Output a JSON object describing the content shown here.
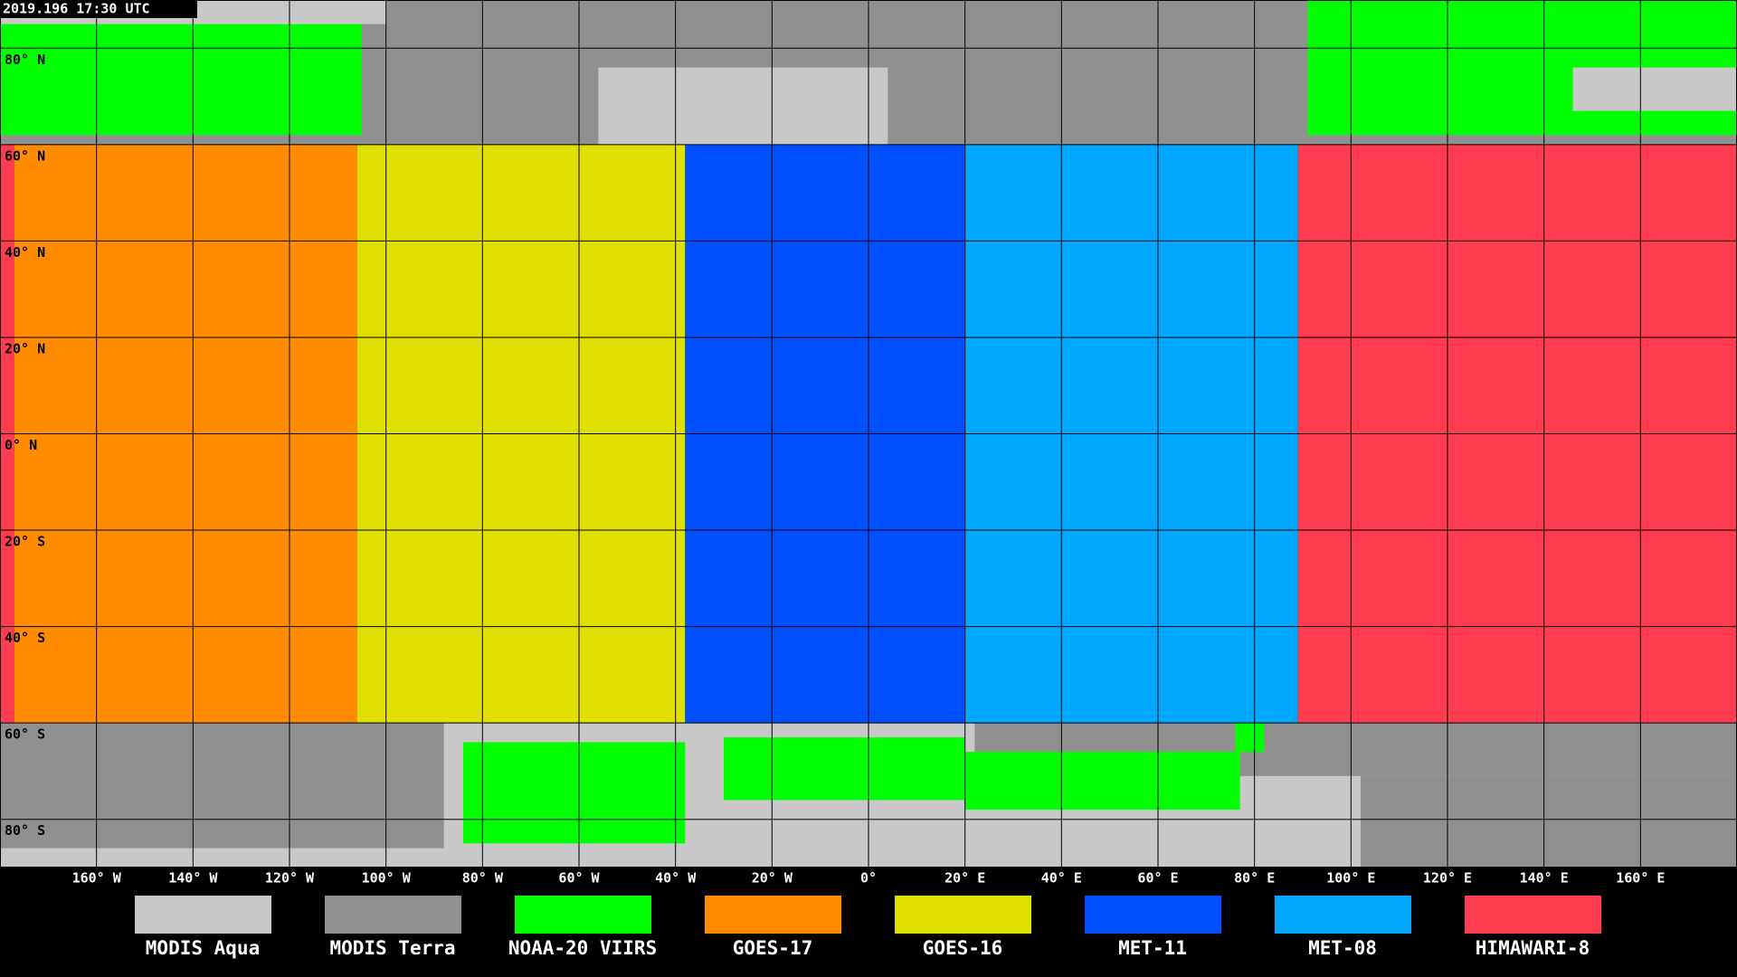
{
  "timestamp": "2019.196 17:30 UTC",
  "latitudes": [
    {
      "value": 80,
      "label": "80° N"
    },
    {
      "value": 60,
      "label": "60° N"
    },
    {
      "value": 40,
      "label": "40° N"
    },
    {
      "value": 20,
      "label": "20° N"
    },
    {
      "value": 0,
      "label": "0° N"
    },
    {
      "value": -20,
      "label": "20° S"
    },
    {
      "value": -40,
      "label": "40° S"
    },
    {
      "value": -60,
      "label": "60° S"
    },
    {
      "value": -80,
      "label": "80° S"
    }
  ],
  "longitudes": [
    {
      "value": -160,
      "label": "160° W"
    },
    {
      "value": -140,
      "label": "140° W"
    },
    {
      "value": -120,
      "label": "120° W"
    },
    {
      "value": -100,
      "label": "100° W"
    },
    {
      "value": -80,
      "label": "80° W"
    },
    {
      "value": -60,
      "label": "60° W"
    },
    {
      "value": -40,
      "label": "40° W"
    },
    {
      "value": -20,
      "label": "20° W"
    },
    {
      "value": 0,
      "label": "0°"
    },
    {
      "value": 20,
      "label": "20° E"
    },
    {
      "value": 40,
      "label": "40° E"
    },
    {
      "value": 60,
      "label": "60° E"
    },
    {
      "value": 80,
      "label": "80° E"
    },
    {
      "value": 100,
      "label": "100° E"
    },
    {
      "value": 120,
      "label": "120° E"
    },
    {
      "value": 140,
      "label": "140° E"
    },
    {
      "value": 160,
      "label": "160° E"
    }
  ],
  "legend": [
    {
      "name": "MODIS Aqua",
      "color": "#c8c8c8"
    },
    {
      "name": "MODIS Terra",
      "color": "#909090"
    },
    {
      "name": "NOAA-20 VIIRS",
      "color": "#00ff00"
    },
    {
      "name": "GOES-17",
      "color": "#ff8c00"
    },
    {
      "name": "GOES-16",
      "color": "#e0e000"
    },
    {
      "name": "MET-11",
      "color": "#0050ff"
    },
    {
      "name": "MET-08",
      "color": "#00a8ff"
    },
    {
      "name": "HIMAWARI-8",
      "color": "#ff3c50"
    }
  ]
}
